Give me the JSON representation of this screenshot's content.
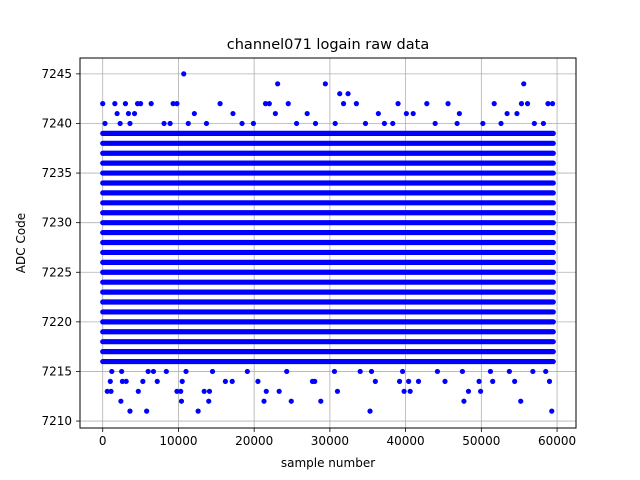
{
  "colors": {
    "points": "#0000ff",
    "grid": "#b0b0b0",
    "axes": "#000000",
    "background": "#ffffff"
  },
  "chart_data": {
    "type": "scatter",
    "title": "channel071 logain raw data",
    "xlabel": "sample number",
    "ylabel": "ADC Code",
    "xlim": [
      -3000,
      62500
    ],
    "ylim": [
      7209.3,
      7246.6
    ],
    "xticks": [
      0,
      10000,
      20000,
      30000,
      40000,
      50000,
      60000
    ],
    "xtick_labels": [
      "0",
      "10000",
      "20000",
      "30000",
      "40000",
      "50000",
      "60000"
    ],
    "yticks": [
      7210,
      7215,
      7220,
      7225,
      7230,
      7235,
      7240,
      7245
    ],
    "ytick_labels": [
      "7210",
      "7215",
      "7220",
      "7225",
      "7230",
      "7235",
      "7240",
      "7245"
    ],
    "grid": true,
    "marker": "circle",
    "x_range": [
      0,
      59500
    ],
    "dense_band": {
      "x_range": [
        0,
        59500
      ],
      "y_values": [
        7216,
        7217,
        7218,
        7219,
        7220,
        7221,
        7222,
        7223,
        7224,
        7225,
        7226,
        7227,
        7228,
        7229,
        7230,
        7231,
        7232,
        7233,
        7234,
        7235,
        7236,
        7237,
        7238,
        7239
      ]
    },
    "sparse_points": [
      {
        "x": 10700,
        "y": 7245
      },
      {
        "x": 23100,
        "y": 7244
      },
      {
        "x": 29400,
        "y": 7244
      },
      {
        "x": 55600,
        "y": 7244
      },
      {
        "x": 31300,
        "y": 7243
      },
      {
        "x": 32400,
        "y": 7243
      },
      {
        "x": 0,
        "y": 7242
      },
      {
        "x": 1600,
        "y": 7242
      },
      {
        "x": 3000,
        "y": 7242
      },
      {
        "x": 4600,
        "y": 7242
      },
      {
        "x": 5000,
        "y": 7242
      },
      {
        "x": 6400,
        "y": 7242
      },
      {
        "x": 9300,
        "y": 7242
      },
      {
        "x": 9800,
        "y": 7242
      },
      {
        "x": 15500,
        "y": 7242
      },
      {
        "x": 21500,
        "y": 7242
      },
      {
        "x": 22000,
        "y": 7242
      },
      {
        "x": 24500,
        "y": 7242
      },
      {
        "x": 31800,
        "y": 7242
      },
      {
        "x": 33500,
        "y": 7242
      },
      {
        "x": 39000,
        "y": 7242
      },
      {
        "x": 42800,
        "y": 7242
      },
      {
        "x": 45600,
        "y": 7242
      },
      {
        "x": 51700,
        "y": 7242
      },
      {
        "x": 55300,
        "y": 7242
      },
      {
        "x": 56100,
        "y": 7242
      },
      {
        "x": 58800,
        "y": 7242
      },
      {
        "x": 59400,
        "y": 7242
      },
      {
        "x": 1900,
        "y": 7241
      },
      {
        "x": 3400,
        "y": 7241
      },
      {
        "x": 4200,
        "y": 7241
      },
      {
        "x": 12100,
        "y": 7241
      },
      {
        "x": 17200,
        "y": 7241
      },
      {
        "x": 22800,
        "y": 7241
      },
      {
        "x": 27000,
        "y": 7241
      },
      {
        "x": 36400,
        "y": 7241
      },
      {
        "x": 40100,
        "y": 7241
      },
      {
        "x": 41000,
        "y": 7241
      },
      {
        "x": 47100,
        "y": 7241
      },
      {
        "x": 53400,
        "y": 7241
      },
      {
        "x": 54700,
        "y": 7241
      },
      {
        "x": 300,
        "y": 7240
      },
      {
        "x": 2300,
        "y": 7240
      },
      {
        "x": 3600,
        "y": 7240
      },
      {
        "x": 8100,
        "y": 7240
      },
      {
        "x": 8900,
        "y": 7240
      },
      {
        "x": 11300,
        "y": 7240
      },
      {
        "x": 13700,
        "y": 7240
      },
      {
        "x": 18400,
        "y": 7240
      },
      {
        "x": 19900,
        "y": 7240
      },
      {
        "x": 25600,
        "y": 7240
      },
      {
        "x": 28100,
        "y": 7240
      },
      {
        "x": 30700,
        "y": 7240
      },
      {
        "x": 34700,
        "y": 7240
      },
      {
        "x": 37200,
        "y": 7240
      },
      {
        "x": 38300,
        "y": 7240
      },
      {
        "x": 43900,
        "y": 7240
      },
      {
        "x": 46800,
        "y": 7240
      },
      {
        "x": 50200,
        "y": 7240
      },
      {
        "x": 52600,
        "y": 7240
      },
      {
        "x": 57000,
        "y": 7240
      },
      {
        "x": 58200,
        "y": 7240
      },
      {
        "x": 1200,
        "y": 7215
      },
      {
        "x": 2500,
        "y": 7215
      },
      {
        "x": 6000,
        "y": 7215
      },
      {
        "x": 6700,
        "y": 7215
      },
      {
        "x": 8400,
        "y": 7215
      },
      {
        "x": 11000,
        "y": 7215
      },
      {
        "x": 14500,
        "y": 7215
      },
      {
        "x": 19100,
        "y": 7215
      },
      {
        "x": 24300,
        "y": 7215
      },
      {
        "x": 30600,
        "y": 7215
      },
      {
        "x": 34000,
        "y": 7215
      },
      {
        "x": 35500,
        "y": 7215
      },
      {
        "x": 39600,
        "y": 7215
      },
      {
        "x": 44200,
        "y": 7215
      },
      {
        "x": 47500,
        "y": 7215
      },
      {
        "x": 51200,
        "y": 7215
      },
      {
        "x": 53700,
        "y": 7215
      },
      {
        "x": 56800,
        "y": 7215
      },
      {
        "x": 58500,
        "y": 7215
      },
      {
        "x": 1000,
        "y": 7214
      },
      {
        "x": 2600,
        "y": 7214
      },
      {
        "x": 3100,
        "y": 7214
      },
      {
        "x": 5300,
        "y": 7214
      },
      {
        "x": 7200,
        "y": 7214
      },
      {
        "x": 10500,
        "y": 7214
      },
      {
        "x": 16200,
        "y": 7214
      },
      {
        "x": 17100,
        "y": 7214
      },
      {
        "x": 20500,
        "y": 7214
      },
      {
        "x": 27700,
        "y": 7214
      },
      {
        "x": 28000,
        "y": 7214
      },
      {
        "x": 36000,
        "y": 7214
      },
      {
        "x": 39200,
        "y": 7214
      },
      {
        "x": 40400,
        "y": 7214
      },
      {
        "x": 41700,
        "y": 7214
      },
      {
        "x": 45200,
        "y": 7214
      },
      {
        "x": 49700,
        "y": 7214
      },
      {
        "x": 51500,
        "y": 7214
      },
      {
        "x": 54400,
        "y": 7214
      },
      {
        "x": 59000,
        "y": 7214
      },
      {
        "x": 600,
        "y": 7213
      },
      {
        "x": 1100,
        "y": 7213
      },
      {
        "x": 4700,
        "y": 7213
      },
      {
        "x": 9800,
        "y": 7213
      },
      {
        "x": 10300,
        "y": 7213
      },
      {
        "x": 13400,
        "y": 7213
      },
      {
        "x": 14100,
        "y": 7213
      },
      {
        "x": 21600,
        "y": 7213
      },
      {
        "x": 23300,
        "y": 7213
      },
      {
        "x": 31000,
        "y": 7213
      },
      {
        "x": 39800,
        "y": 7213
      },
      {
        "x": 40600,
        "y": 7213
      },
      {
        "x": 48300,
        "y": 7213
      },
      {
        "x": 49900,
        "y": 7213
      },
      {
        "x": 2400,
        "y": 7212
      },
      {
        "x": 10400,
        "y": 7212
      },
      {
        "x": 14000,
        "y": 7212
      },
      {
        "x": 21300,
        "y": 7212
      },
      {
        "x": 24900,
        "y": 7212
      },
      {
        "x": 28800,
        "y": 7212
      },
      {
        "x": 47700,
        "y": 7212
      },
      {
        "x": 55200,
        "y": 7212
      },
      {
        "x": 3600,
        "y": 7211
      },
      {
        "x": 5800,
        "y": 7211
      },
      {
        "x": 12600,
        "y": 7211
      },
      {
        "x": 35300,
        "y": 7211
      },
      {
        "x": 59300,
        "y": 7211
      }
    ]
  }
}
